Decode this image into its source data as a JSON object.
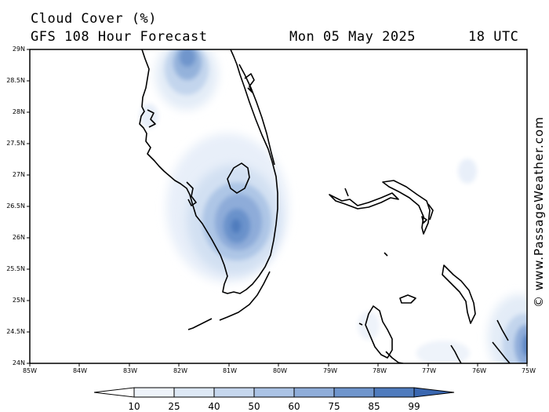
{
  "header": {
    "title": "Cloud Cover (%)",
    "subtitle": "GFS 108 Hour Forecast",
    "date": "Mon 05 May 2025",
    "time": "18 UTC"
  },
  "credit": "© www.PassageWeather.com",
  "map": {
    "lat_range": [
      24,
      29
    ],
    "lon_range": [
      -85,
      -75
    ],
    "lat_ticks": [
      "29N",
      "28.5N",
      "28N",
      "27.5N",
      "27N",
      "26.5N",
      "26N",
      "25.5N",
      "25N",
      "24.5N",
      "24N"
    ],
    "lon_ticks": [
      "85W",
      "84W",
      "83W",
      "82W",
      "81W",
      "80W",
      "79W",
      "78W",
      "77W",
      "76W",
      "75W"
    ],
    "coastline_color": "#000000"
  },
  "colorbar": {
    "labels": [
      "10",
      "25",
      "40",
      "50",
      "60",
      "75",
      "85",
      "99"
    ],
    "colors": [
      "#ffffff",
      "#eef3fa",
      "#dde8f5",
      "#c6d7ee",
      "#abc3e5",
      "#8fadd9",
      "#6f95cc",
      "#4f7bbd",
      "#3a67b0"
    ]
  }
}
